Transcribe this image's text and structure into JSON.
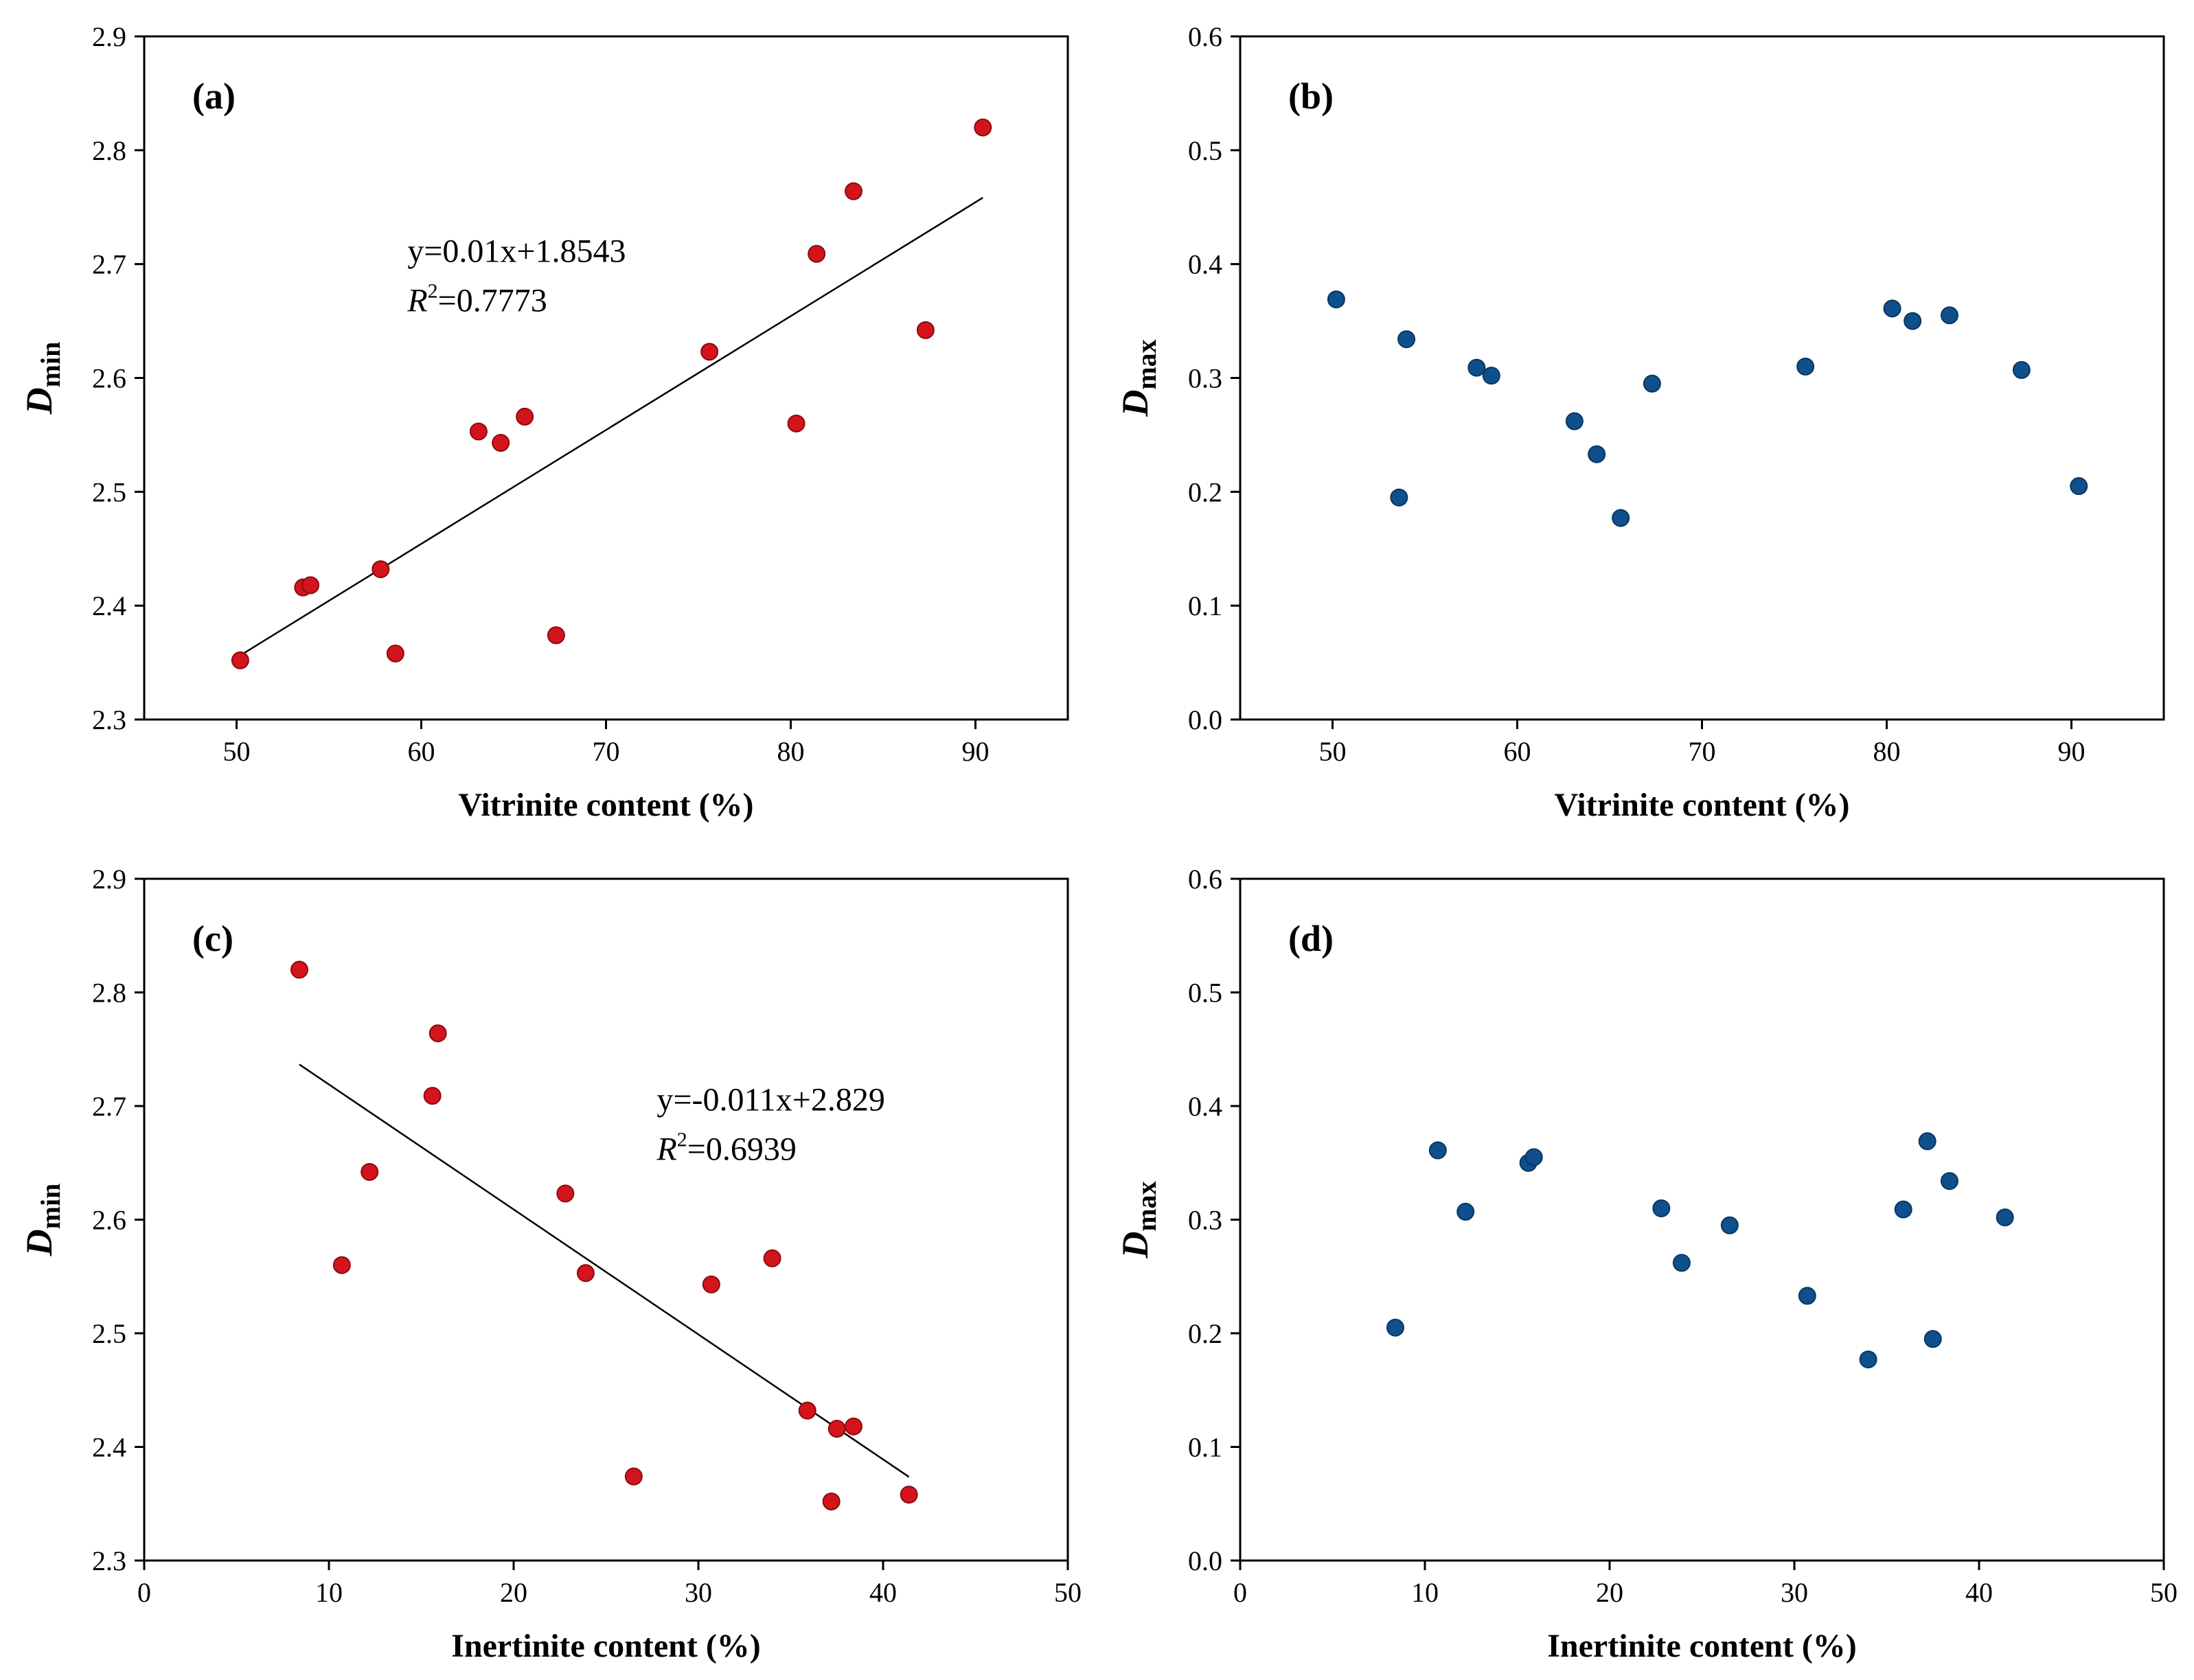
{
  "chart_data": [
    {
      "panel": "(a)",
      "type": "scatter",
      "xlabel": "Vitrinite content (%)",
      "ylabel": "D",
      "ylabel_sub": "min",
      "xlim": [
        45,
        95
      ],
      "ylim": [
        2.3,
        2.9
      ],
      "xticks": [
        50,
        60,
        70,
        80,
        90
      ],
      "yticks": [
        2.3,
        2.4,
        2.5,
        2.6,
        2.7,
        2.8,
        2.9
      ],
      "point_color": "#d4141c",
      "points": [
        [
          50.2,
          2.352
        ],
        [
          53.6,
          2.416
        ],
        [
          54.0,
          2.418
        ],
        [
          57.8,
          2.432
        ],
        [
          58.6,
          2.358
        ],
        [
          63.1,
          2.553
        ],
        [
          64.3,
          2.543
        ],
        [
          65.6,
          2.566
        ],
        [
          67.3,
          2.374
        ],
        [
          75.6,
          2.623
        ],
        [
          80.3,
          2.56
        ],
        [
          81.4,
          2.709
        ],
        [
          83.4,
          2.764
        ],
        [
          87.3,
          2.642
        ],
        [
          90.4,
          2.82
        ]
      ],
      "fit": {
        "slope": 0.01,
        "intercept": 1.8543,
        "x_range": [
          50.2,
          90.4
        ]
      },
      "equation": "y=0.01x+1.8543",
      "r2_label": "R",
      "r2_value": "=0.7773"
    },
    {
      "panel": "(b)",
      "type": "scatter",
      "xlabel": "Vitrinite content (%)",
      "ylabel": "D",
      "ylabel_sub": "max",
      "xlim": [
        45,
        95
      ],
      "ylim": [
        0.0,
        0.6
      ],
      "xticks": [
        50,
        60,
        70,
        80,
        90
      ],
      "yticks": [
        0.0,
        0.1,
        0.2,
        0.3,
        0.4,
        0.5,
        0.6
      ],
      "point_color": "#0f4f8c",
      "points": [
        [
          50.2,
          0.369
        ],
        [
          53.6,
          0.195
        ],
        [
          54.0,
          0.334
        ],
        [
          57.8,
          0.309
        ],
        [
          58.6,
          0.302
        ],
        [
          63.1,
          0.262
        ],
        [
          64.3,
          0.233
        ],
        [
          65.6,
          0.177
        ],
        [
          67.3,
          0.295
        ],
        [
          75.6,
          0.31
        ],
        [
          80.3,
          0.361
        ],
        [
          81.4,
          0.35
        ],
        [
          83.4,
          0.355
        ],
        [
          87.3,
          0.307
        ],
        [
          90.4,
          0.205
        ]
      ]
    },
    {
      "panel": "(c)",
      "type": "scatter",
      "xlabel": "Inertinite content (%)",
      "ylabel": "D",
      "ylabel_sub": "min",
      "xlim": [
        0,
        50
      ],
      "ylim": [
        2.3,
        2.9
      ],
      "xticks": [
        0,
        10,
        20,
        30,
        40,
        50
      ],
      "yticks": [
        2.3,
        2.4,
        2.5,
        2.6,
        2.7,
        2.8,
        2.9
      ],
      "point_color": "#d4141c",
      "points": [
        [
          8.4,
          2.82
        ],
        [
          10.7,
          2.56
        ],
        [
          12.2,
          2.642
        ],
        [
          15.6,
          2.709
        ],
        [
          15.9,
          2.764
        ],
        [
          22.8,
          2.623
        ],
        [
          23.9,
          2.553
        ],
        [
          26.5,
          2.374
        ],
        [
          30.7,
          2.543
        ],
        [
          34.0,
          2.566
        ],
        [
          35.9,
          2.432
        ],
        [
          37.2,
          2.352
        ],
        [
          37.5,
          2.416
        ],
        [
          38.4,
          2.418
        ],
        [
          41.4,
          2.358
        ]
      ],
      "fit": {
        "slope": -0.011,
        "intercept": 2.829,
        "x_range": [
          8.4,
          41.4
        ]
      },
      "equation": "y=-0.011x+2.829",
      "r2_label": "R",
      "r2_value": "=0.6939"
    },
    {
      "panel": "(d)",
      "type": "scatter",
      "xlabel": "Inertinite content (%)",
      "ylabel": "D",
      "ylabel_sub": "max",
      "xlim": [
        0,
        50
      ],
      "ylim": [
        0.0,
        0.6
      ],
      "xticks": [
        0,
        10,
        20,
        30,
        40,
        50
      ],
      "yticks": [
        0.0,
        0.1,
        0.2,
        0.3,
        0.4,
        0.5,
        0.6
      ],
      "point_color": "#0f4f8c",
      "points": [
        [
          8.4,
          0.205
        ],
        [
          10.7,
          0.361
        ],
        [
          12.2,
          0.307
        ],
        [
          15.6,
          0.35
        ],
        [
          15.9,
          0.355
        ],
        [
          22.8,
          0.31
        ],
        [
          23.9,
          0.262
        ],
        [
          26.5,
          0.295
        ],
        [
          30.7,
          0.233
        ],
        [
          34.0,
          0.177
        ],
        [
          35.9,
          0.309
        ],
        [
          37.2,
          0.369
        ],
        [
          37.5,
          0.195
        ],
        [
          38.4,
          0.334
        ],
        [
          41.4,
          0.302
        ]
      ]
    }
  ]
}
